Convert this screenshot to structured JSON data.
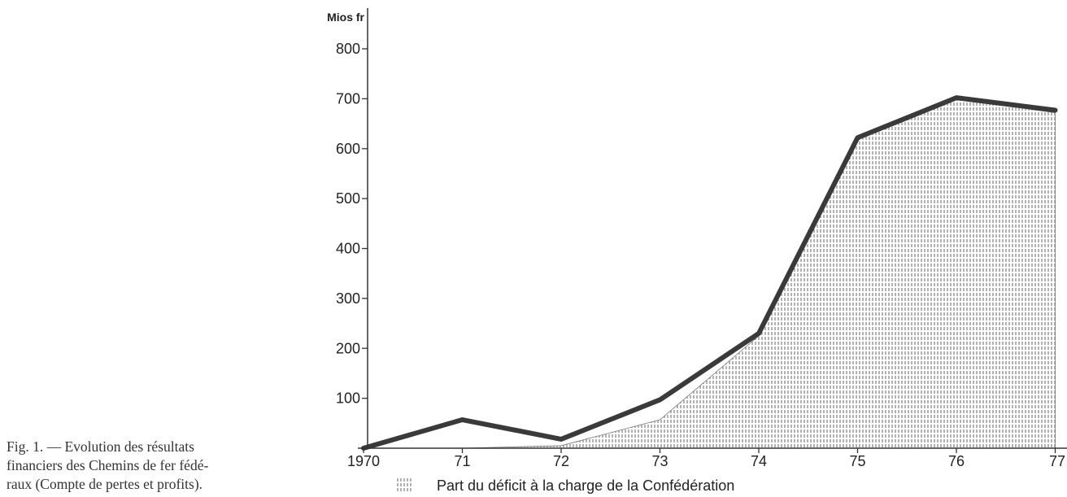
{
  "caption": {
    "line1": "Fig. 1. — Evolution des résultats",
    "line2": "financiers des Chemins de fer fédé-",
    "line3": "raux (Compte de pertes et profits)."
  },
  "chart_data": {
    "type": "area",
    "ylabel": "Mios fr",
    "xlabel": "",
    "categories": [
      "1970",
      "71",
      "72",
      "73",
      "74",
      "75",
      "76",
      "77"
    ],
    "ylim": [
      0,
      850
    ],
    "y_ticks": [
      100,
      200,
      300,
      400,
      500,
      600,
      700,
      800
    ],
    "series": [
      {
        "name": "",
        "kind": "line",
        "color": "#3a3a3a",
        "values": [
          0,
          57,
          18,
          97,
          230,
          622,
          702,
          677
        ]
      },
      {
        "name": "Part du déficit à la charge de la Confédération",
        "kind": "hatched-area",
        "color": "#666666",
        "values": [
          0,
          0,
          5,
          57,
          225,
          618,
          700,
          672
        ]
      }
    ],
    "legend": {
      "position": "bottom-center",
      "label": "Part du déficit à la charge de la Confédération"
    },
    "grid": false
  }
}
